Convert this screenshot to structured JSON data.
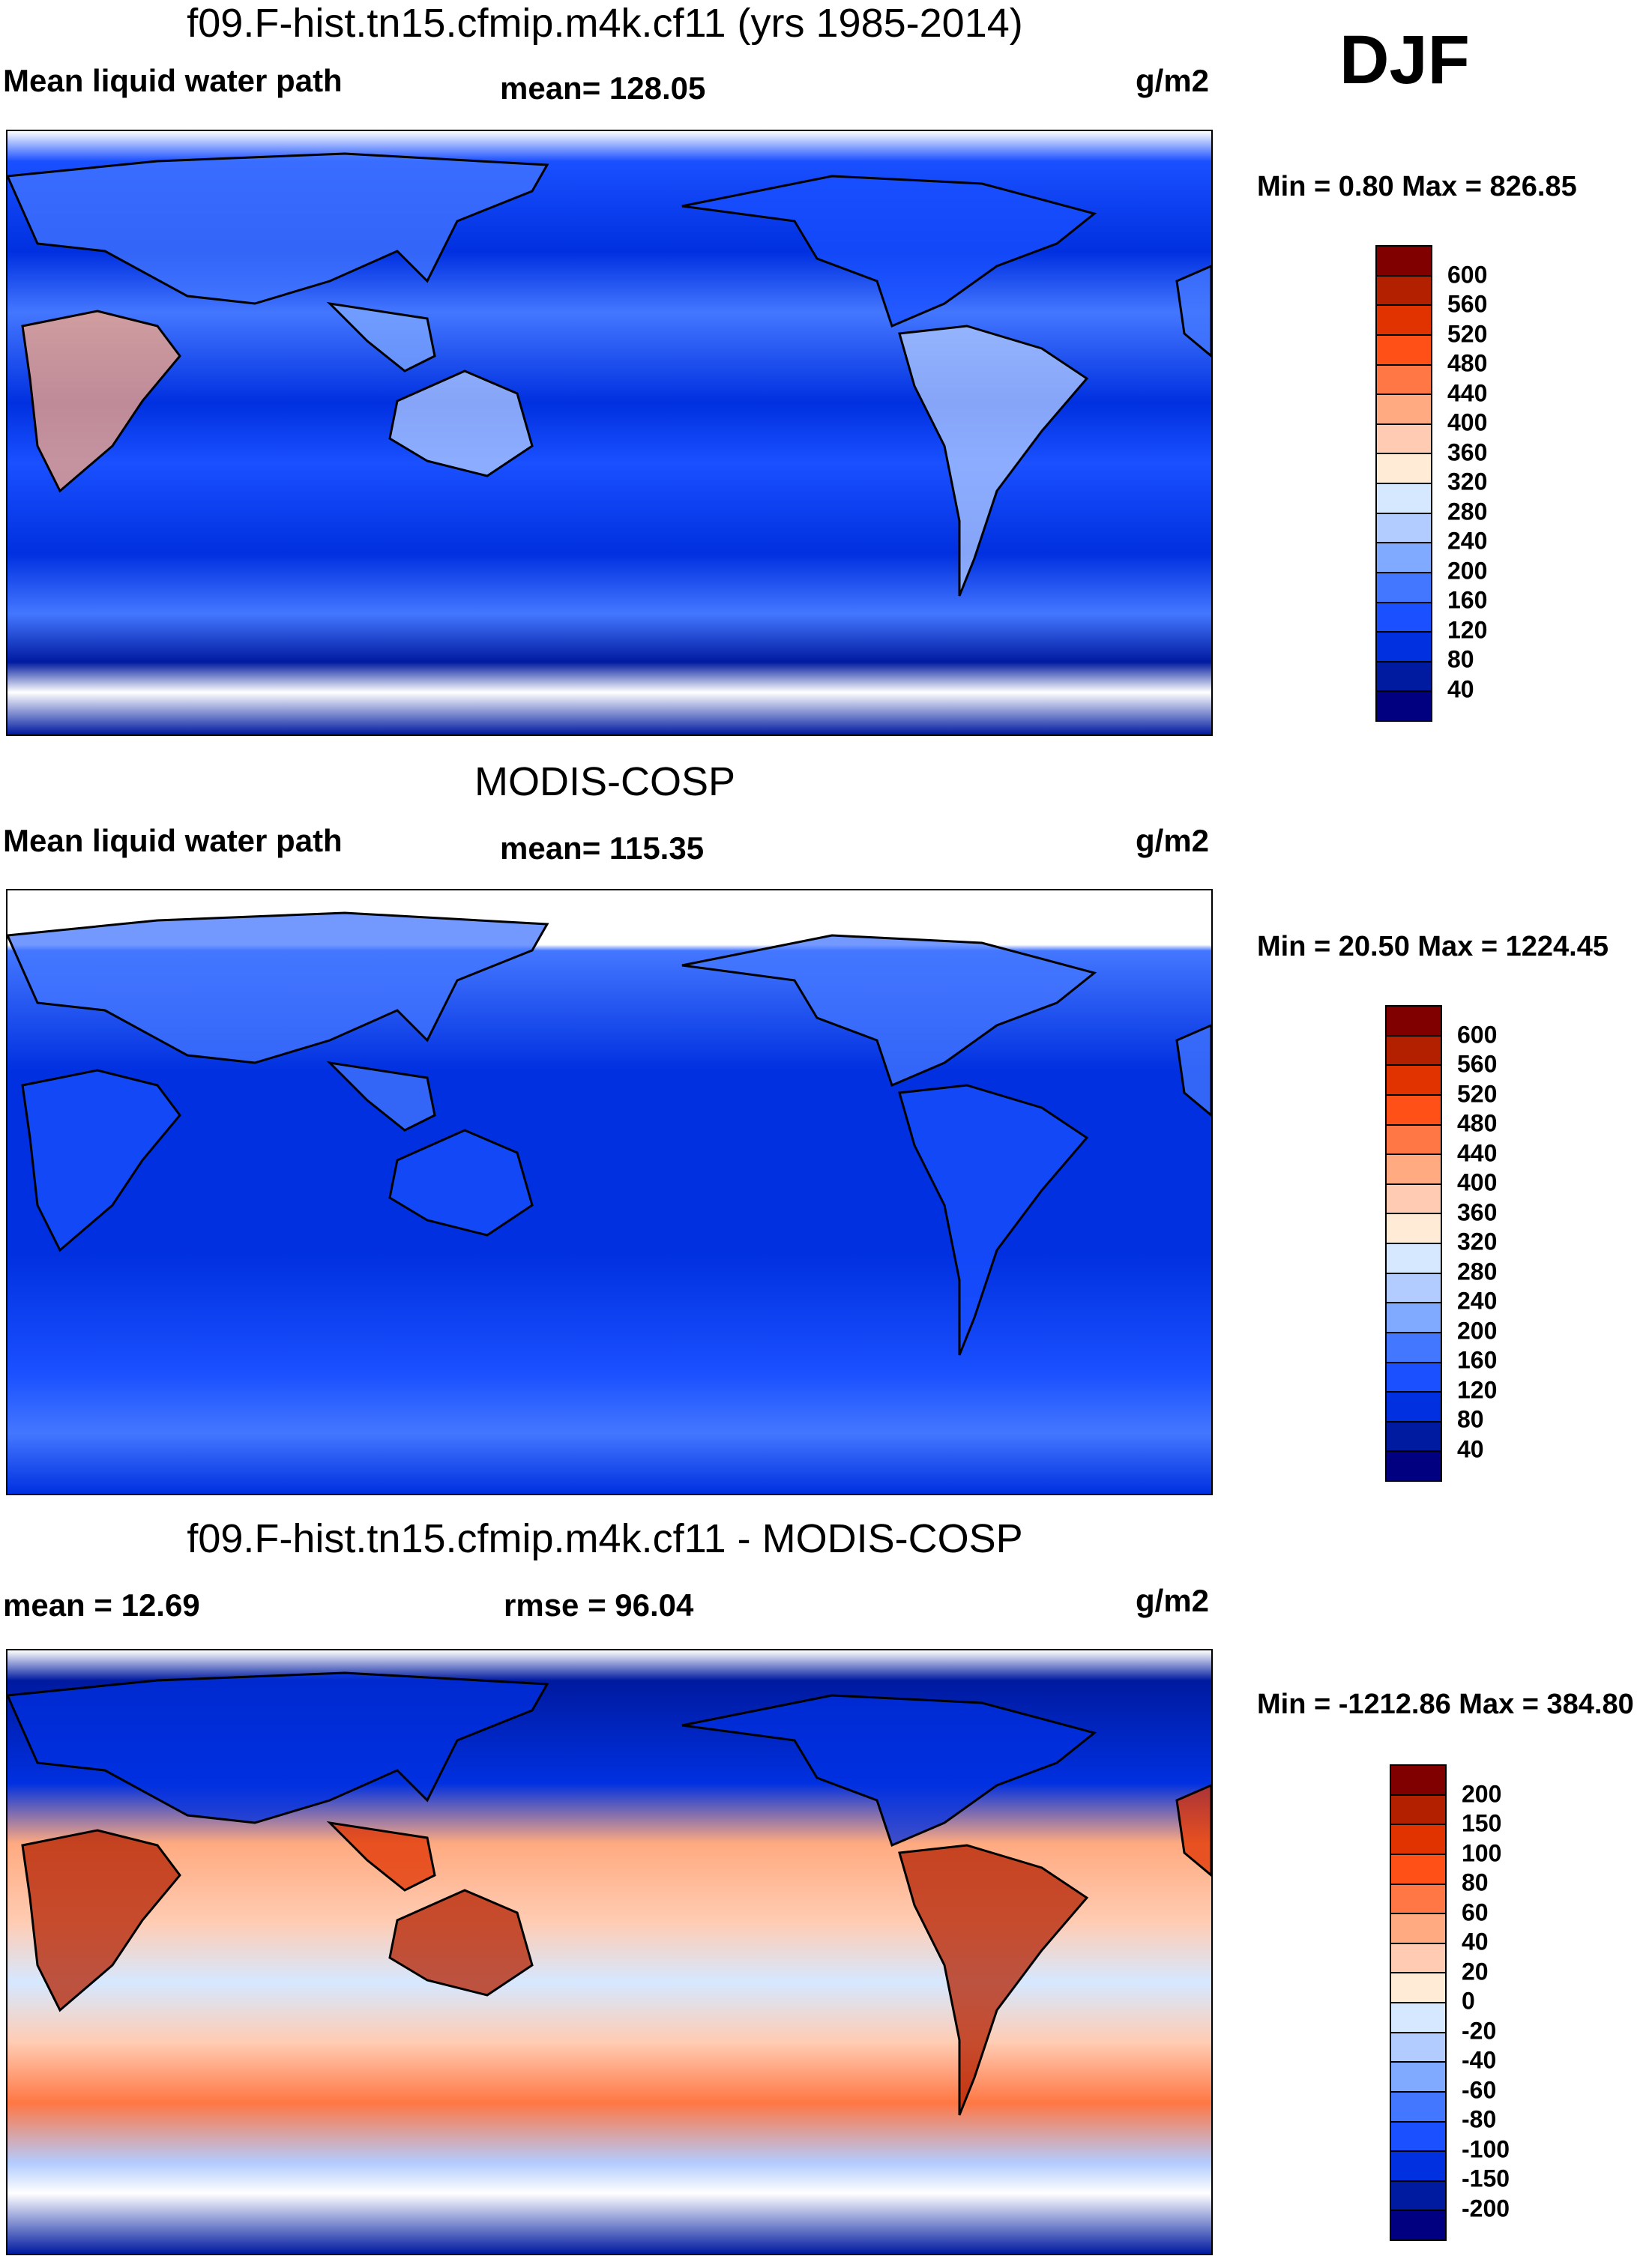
{
  "season": "DJF",
  "colors": [
    "#000080",
    "#001aa0",
    "#0030e0",
    "#1a50ff",
    "#4477ff",
    "#80aaff",
    "#b3ccff",
    "#d6e8ff",
    "#ffebd6",
    "#ffccb3",
    "#ffaa80",
    "#ff7744",
    "#ff5018",
    "#e03300",
    "#b32000",
    "#800000"
  ],
  "panels": [
    {
      "title": "f09.F-hist.tn15.cfmip.m4k.cf11 (yrs 1985-2014)",
      "left": "Mean liquid water path",
      "center": "mean= 128.05",
      "units": "g/m2",
      "minmax": "Min =   0.80 Max = 826.85",
      "levels": [
        "40",
        "80",
        "120",
        "160",
        "200",
        "240",
        "280",
        "320",
        "360",
        "400",
        "440",
        "480",
        "520",
        "560",
        "600"
      ]
    },
    {
      "title": "MODIS-COSP",
      "left": "Mean liquid water path",
      "center": "mean= 115.35",
      "units": "g/m2",
      "minmax": "Min =  20.50 Max = 1224.45",
      "levels": [
        "40",
        "80",
        "120",
        "160",
        "200",
        "240",
        "280",
        "320",
        "360",
        "400",
        "440",
        "480",
        "520",
        "560",
        "600"
      ]
    },
    {
      "title": "f09.F-hist.tn15.cfmip.m4k.cf11 - MODIS-COSP",
      "left": "mean =  12.69",
      "center": "rmse =  96.04",
      "units": "g/m2",
      "minmax": "Min = -1212.86 Max = 384.80",
      "levels": [
        "-200",
        "-150",
        "-100",
        "-80",
        "-60",
        "-40",
        "-20",
        "0",
        "20",
        "40",
        "60",
        "80",
        "100",
        "150",
        "200"
      ]
    }
  ]
}
